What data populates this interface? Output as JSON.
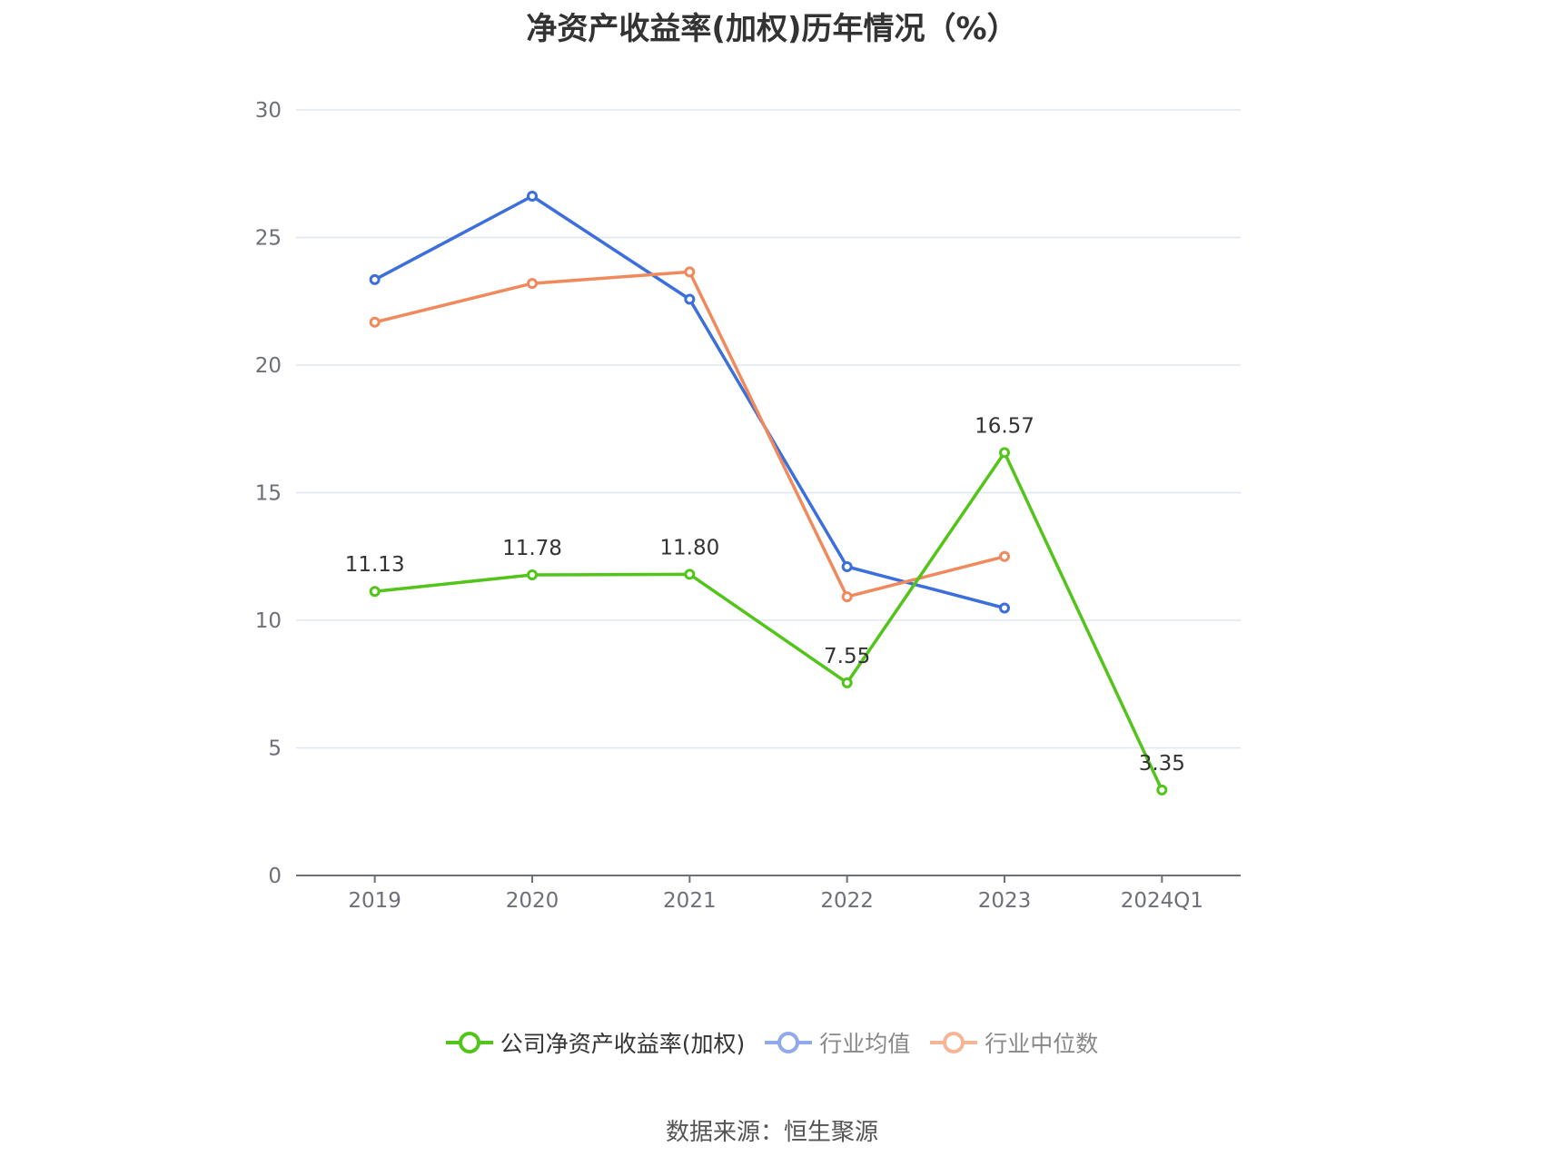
{
  "title": "净资产收益率(加权)历年情况（%）",
  "source": "数据来源：恒生聚源",
  "chart_data": {
    "type": "line",
    "categories": [
      "2019",
      "2020",
      "2021",
      "2022",
      "2023",
      "2024Q1"
    ],
    "ylim": [
      0,
      30
    ],
    "yticks": [
      0,
      5,
      10,
      15,
      20,
      25,
      30
    ],
    "grid": true,
    "legend_position": "bottom",
    "series": [
      {
        "name": "公司净资产收益率(加权)",
        "color": "#52c41a",
        "values": [
          11.13,
          11.78,
          11.8,
          7.55,
          16.57,
          3.35
        ],
        "labels": [
          "11.13",
          "11.78",
          "11.80",
          "7.55",
          "16.57",
          "3.35"
        ]
      },
      {
        "name": "行业均值",
        "color": "#3c6fdc",
        "values": [
          23.35,
          26.62,
          22.58,
          12.1,
          10.48,
          null
        ]
      },
      {
        "name": "行业中位数",
        "color": "#f08a5d",
        "values": [
          21.68,
          23.2,
          23.65,
          10.92,
          12.5,
          null
        ]
      }
    ]
  }
}
